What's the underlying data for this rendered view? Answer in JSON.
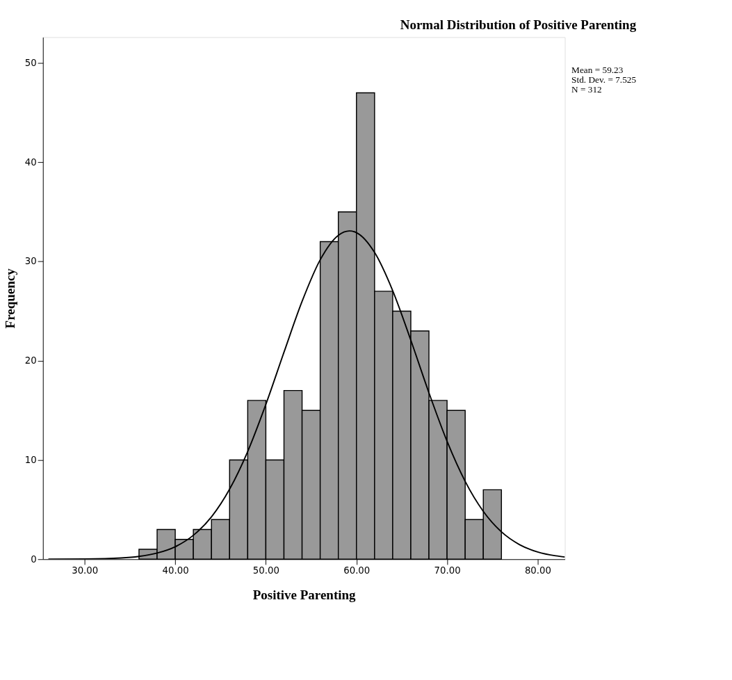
{
  "chart_data": {
    "type": "histogram",
    "title": "Normal Distribution of Positive Parenting",
    "xlabel": "Positive Parenting",
    "ylabel": "Frequency",
    "bins": [
      36,
      38,
      40,
      42,
      44,
      46,
      48,
      50,
      52,
      54,
      56,
      58,
      60,
      62,
      64,
      66,
      68,
      70,
      72,
      74,
      76
    ],
    "values": [
      1,
      3,
      2,
      3,
      4,
      10,
      16,
      10,
      17,
      15,
      32,
      35,
      47,
      27,
      25,
      23,
      16,
      15,
      4,
      7
    ],
    "color": "#999999",
    "series": [
      {
        "type": "line",
        "color": "#000000",
        "x": [
          26,
          30,
          34,
          36,
          38,
          40,
          42,
          44,
          46,
          48,
          50,
          52,
          54,
          56,
          58,
          59.23,
          60,
          62,
          64,
          66,
          68,
          70,
          72,
          74,
          76,
          78,
          80,
          82,
          83
        ],
        "values": [
          0.0,
          0.02,
          0.12,
          0.28,
          0.62,
          1.26,
          2.41,
          4.27,
          7.06,
          10.86,
          15.6,
          20.85,
          25.98,
          30.17,
          32.64,
          33.08,
          32.91,
          30.91,
          27.06,
          22.07,
          16.77,
          11.88,
          7.84,
          4.82,
          2.76,
          1.47,
          0.73,
          0.34,
          0.22
        ]
      }
    ],
    "xlim": [
      25.4,
      83
    ],
    "xticks": [
      {
        "value": 30,
        "label": "30.00"
      },
      {
        "value": 40,
        "label": "40.00"
      },
      {
        "value": 50,
        "label": "50.00"
      },
      {
        "value": 60,
        "label": "60.00"
      },
      {
        "value": 70,
        "label": "70.00"
      },
      {
        "value": 80,
        "label": "80.00"
      }
    ],
    "ylim": [
      0,
      52.6
    ],
    "yticks": [
      0,
      10,
      20,
      30,
      40,
      50
    ],
    "grid": false,
    "annotations": [
      "Mean = 59.23",
      "Std. Dev. = 7.525",
      "N = 312"
    ]
  }
}
